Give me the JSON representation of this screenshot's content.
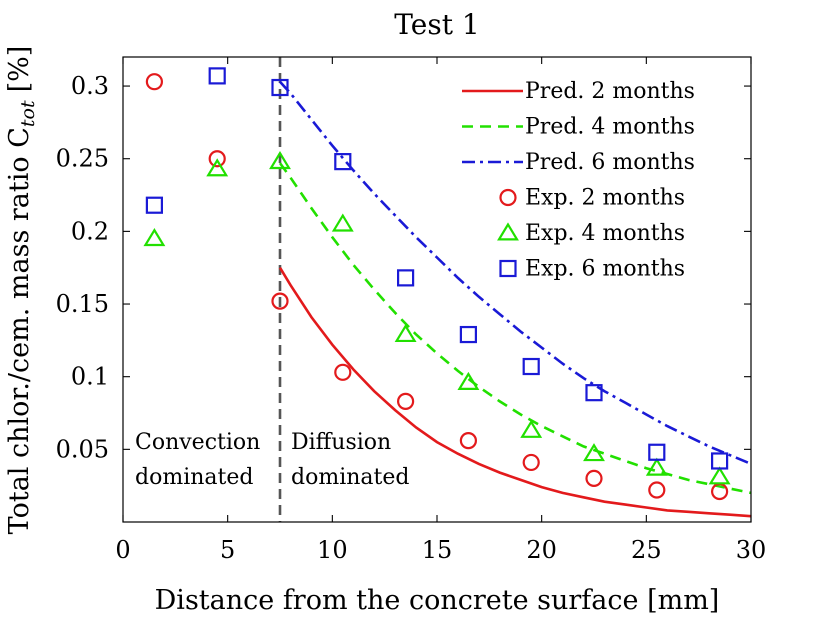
{
  "chart_data": {
    "type": "line",
    "title": "Test 1",
    "xlabel": "Distance from the concrete surface [mm]",
    "ylabel": "Total chlor./cem. mass ratio C",
    "ylabel_subscript": "tot",
    "ylabel_unit": "[%]",
    "xlim": [
      0,
      30
    ],
    "ylim": [
      0,
      0.32
    ],
    "xticks": [
      0,
      5,
      10,
      15,
      20,
      25,
      30
    ],
    "yticks": [
      0.05,
      0.1,
      0.15,
      0.2,
      0.25,
      0.3
    ],
    "yticklabels": [
      "0.05",
      "0.1",
      "0.15",
      "0.2",
      "0.25",
      "0.3"
    ],
    "grid": false,
    "legend_position": "top-right",
    "vline": {
      "x": 7.5,
      "color": "#555555",
      "style": "dashed"
    },
    "annotations": [
      {
        "line1": "Convection",
        "line2": "dominated"
      },
      {
        "line1": "Diffusion",
        "line2": "dominated"
      }
    ],
    "series": [
      {
        "name": "Pred. 2 months",
        "kind": "line",
        "style": "solid",
        "color": "#e31a1c",
        "x": [
          7.5,
          8,
          9,
          10,
          11,
          12,
          13,
          14,
          15,
          16,
          17,
          18,
          19,
          20,
          21,
          22,
          23,
          24,
          25,
          26,
          27,
          28,
          29,
          30
        ],
        "y": [
          0.175,
          0.163,
          0.141,
          0.122,
          0.105,
          0.09,
          0.077,
          0.065,
          0.055,
          0.047,
          0.04,
          0.034,
          0.029,
          0.024,
          0.02,
          0.017,
          0.014,
          0.012,
          0.01,
          0.008,
          0.007,
          0.006,
          0.005,
          0.004
        ]
      },
      {
        "name": "Pred. 4 months",
        "kind": "line",
        "style": "dashed",
        "color": "#22e000",
        "x": [
          7.5,
          8,
          9,
          10,
          11,
          12,
          13,
          14,
          15,
          16,
          17,
          18,
          19,
          20,
          21,
          22,
          23,
          24,
          25,
          26,
          27,
          28,
          29,
          30
        ],
        "y": [
          0.247,
          0.237,
          0.216,
          0.196,
          0.177,
          0.16,
          0.144,
          0.129,
          0.116,
          0.104,
          0.093,
          0.083,
          0.074,
          0.066,
          0.059,
          0.052,
          0.047,
          0.042,
          0.037,
          0.033,
          0.029,
          0.026,
          0.023,
          0.02
        ]
      },
      {
        "name": "Pred. 6 months",
        "kind": "line",
        "style": "dashdot",
        "color": "#1a1ad6",
        "x": [
          7.5,
          8,
          9,
          10,
          11,
          12,
          13,
          14,
          15,
          16,
          17,
          18,
          19,
          20,
          21,
          22,
          23,
          24,
          25,
          26,
          27,
          28,
          29,
          30
        ],
        "y": [
          0.303,
          0.295,
          0.277,
          0.259,
          0.242,
          0.226,
          0.211,
          0.196,
          0.182,
          0.168,
          0.155,
          0.143,
          0.131,
          0.12,
          0.109,
          0.099,
          0.09,
          0.082,
          0.074,
          0.066,
          0.059,
          0.052,
          0.046,
          0.04
        ]
      },
      {
        "name": "Exp. 2 months",
        "kind": "scatter",
        "marker": "circle",
        "color": "#e31a1c",
        "x": [
          1.5,
          4.5,
          7.5,
          10.5,
          13.5,
          16.5,
          19.5,
          22.5,
          25.5,
          28.5
        ],
        "y": [
          0.303,
          0.25,
          0.152,
          0.103,
          0.083,
          0.056,
          0.041,
          0.03,
          0.022,
          0.021
        ]
      },
      {
        "name": "Exp. 4 months",
        "kind": "scatter",
        "marker": "triangle",
        "color": "#22e000",
        "x": [
          1.5,
          4.5,
          7.5,
          10.5,
          13.5,
          16.5,
          19.5,
          22.5,
          25.5,
          28.5
        ],
        "y": [
          0.195,
          0.243,
          0.248,
          0.205,
          0.129,
          0.096,
          0.063,
          0.047,
          0.037,
          0.031
        ]
      },
      {
        "name": "Exp. 6 months",
        "kind": "scatter",
        "marker": "square",
        "color": "#1a1ad6",
        "x": [
          1.5,
          4.5,
          7.5,
          10.5,
          13.5,
          16.5,
          19.5,
          22.5,
          25.5,
          28.5
        ],
        "y": [
          0.218,
          0.307,
          0.299,
          0.248,
          0.168,
          0.129,
          0.107,
          0.089,
          0.048,
          0.042
        ]
      }
    ]
  }
}
